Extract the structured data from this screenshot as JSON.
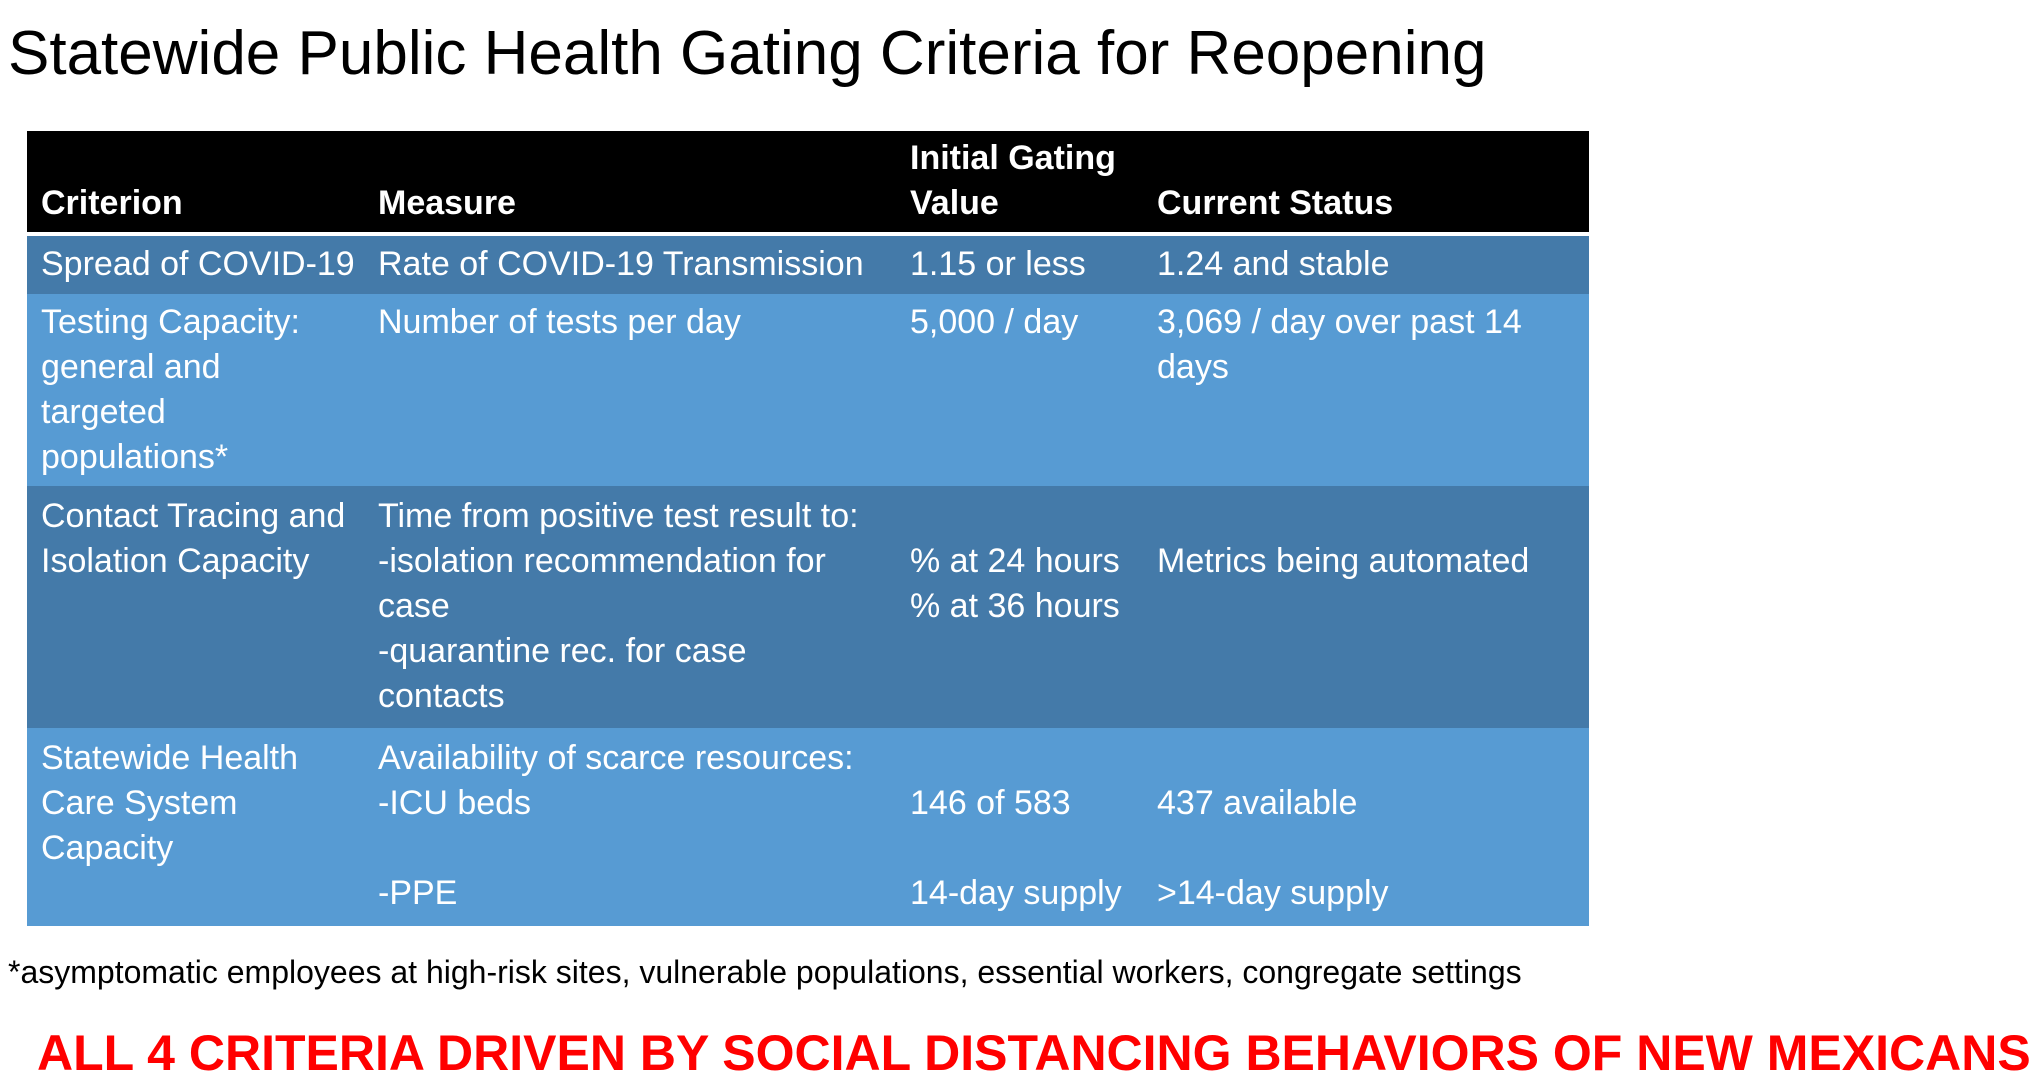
{
  "title": "Statewide Public Health Gating Criteria for Reopening",
  "table": {
    "headers": {
      "criterion": "Criterion",
      "measure": "Measure",
      "gating_line1": "Initial Gating",
      "gating_line2": "Value",
      "status": "Current Status"
    },
    "rows": [
      {
        "criterion": [
          "Spread of COVID-19"
        ],
        "measure": [
          "Rate of COVID-19 Transmission"
        ],
        "gating": [
          "1.15 or less"
        ],
        "status": [
          "1.24 and stable"
        ]
      },
      {
        "criterion": [
          "Testing Capacity:",
          "general and",
          "targeted",
          "populations*"
        ],
        "measure": [
          "Number of tests per day"
        ],
        "gating": [
          "5,000 / day"
        ],
        "status": [
          "3,069 / day over past 14",
          "days"
        ]
      },
      {
        "criterion": [
          "Contact Tracing and",
          "Isolation Capacity"
        ],
        "measure": [
          "Time from positive test result to:",
          "-isolation recommendation for",
          "case",
          "-quarantine rec. for case",
          "contacts"
        ],
        "gating": [
          "% at 24 hours",
          "% at 36 hours"
        ],
        "status": [
          "Metrics being automated"
        ]
      },
      {
        "criterion": [
          "Statewide Health",
          "Care System",
          "Capacity"
        ],
        "measure": [
          "Availability of scarce resources:",
          "-ICU beds",
          "-PPE"
        ],
        "gating": [
          "146 of 583",
          "14-day supply"
        ],
        "status": [
          "437 available",
          ">14-day supply"
        ]
      }
    ]
  },
  "footnote": "*asymptomatic employees at high-risk sites, vulnerable populations, essential workers, congregate settings",
  "banner": "ALL 4 CRITERIA DRIVEN BY SOCIAL DISTANCING BEHAVIORS OF NEW MEXICANS",
  "colors": {
    "header_bg": "#000000",
    "row_dark": "#447aa9",
    "row_light": "#579bd3",
    "banner_text": "#ff0000"
  }
}
